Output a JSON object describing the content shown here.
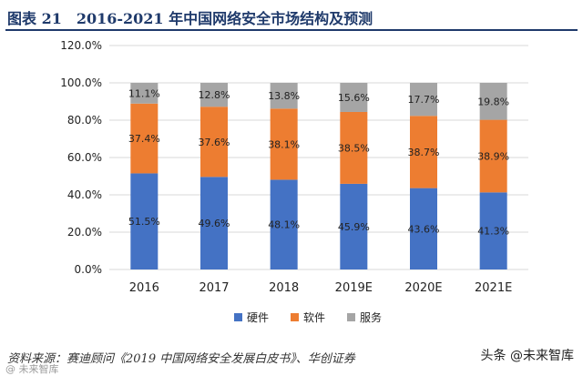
{
  "header": {
    "title": "图表 21　2016-2021 年中国网络安全市场结构及预测"
  },
  "chart_data": {
    "type": "bar",
    "stacked": true,
    "categories": [
      "2016",
      "2017",
      "2018",
      "2019E",
      "2020E",
      "2021E"
    ],
    "series": [
      {
        "name": "硬件",
        "color": "#4472c4",
        "values": [
          51.5,
          49.6,
          48.1,
          45.9,
          43.6,
          41.3
        ],
        "labels": [
          "51.5%",
          "49.6%",
          "48.1%",
          "45.9%",
          "43.6%",
          "41.3%"
        ]
      },
      {
        "name": "软件",
        "color": "#ed7d31",
        "values": [
          37.4,
          37.6,
          38.1,
          38.5,
          38.7,
          38.9
        ],
        "labels": [
          "37.4%",
          "37.6%",
          "38.1%",
          "38.5%",
          "38.7%",
          "38.9%"
        ]
      },
      {
        "name": "服务",
        "color": "#a5a5a5",
        "values": [
          11.1,
          12.8,
          13.8,
          15.6,
          17.7,
          19.8
        ],
        "labels": [
          "11.1%",
          "12.8%",
          "13.8%",
          "15.6%",
          "17.7%",
          "19.8%"
        ]
      }
    ],
    "ylim": [
      0,
      120
    ],
    "yticks": [
      0,
      20,
      40,
      60,
      80,
      100,
      120
    ],
    "ytick_labels": [
      "0.0%",
      "20.0%",
      "40.0%",
      "60.0%",
      "80.0%",
      "100.0%",
      "120.0%"
    ],
    "legend_position": "bottom",
    "grid": true
  },
  "footer": {
    "source": "资料来源：赛迪顾问《2019 中国网络安全发展白皮书》、华创证券",
    "watermark_left": "@ 未来智库",
    "watermark_right": "头条 @未来智库"
  }
}
